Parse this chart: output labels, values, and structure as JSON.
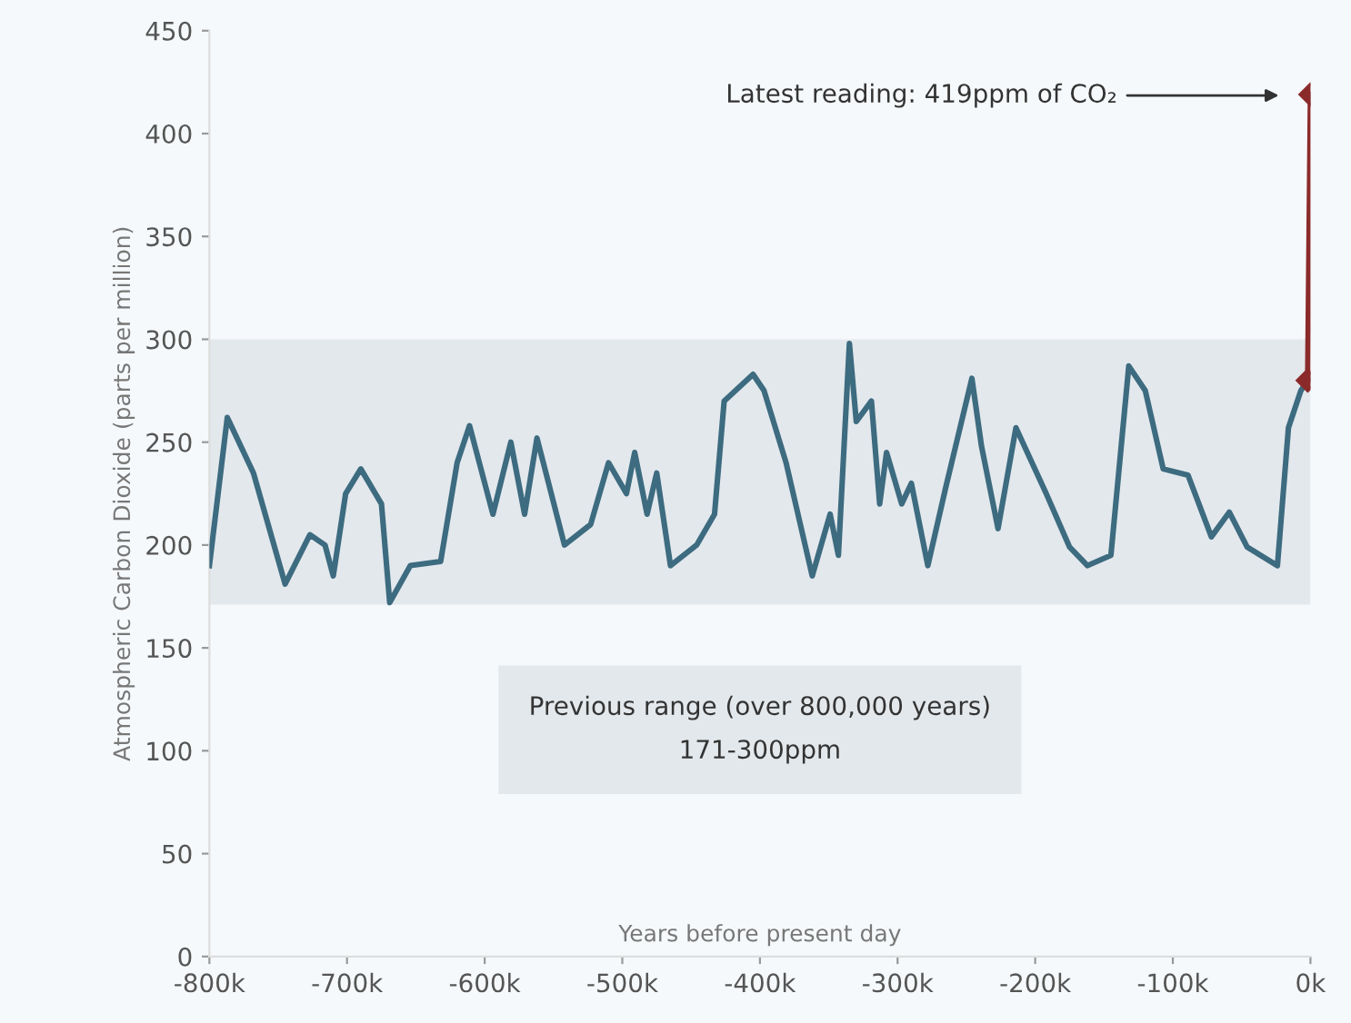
{
  "chart_data": {
    "type": "line",
    "xlabel": "Years before present day",
    "ylabel": "Atmospheric Carbon Dioxide (parts per million)",
    "xlim": [
      -800,
      0
    ],
    "xticks": [
      {
        "value": -800,
        "label": "-800k"
      },
      {
        "value": -700,
        "label": "-700k"
      },
      {
        "value": -600,
        "label": "-600k"
      },
      {
        "value": -500,
        "label": "-500k"
      },
      {
        "value": -400,
        "label": "-400k"
      },
      {
        "value": -300,
        "label": "-300k"
      },
      {
        "value": -200,
        "label": "-200k"
      },
      {
        "value": -100,
        "label": "-100k"
      },
      {
        "value": 0,
        "label": "0k"
      }
    ],
    "ylim": [
      0,
      450
    ],
    "yticks": [
      0,
      50,
      100,
      150,
      200,
      250,
      300,
      350,
      400,
      450
    ],
    "grid": false,
    "line_style": "solid",
    "series": [
      {
        "color": "#3d6b80",
        "marker": "none",
        "x": [
          -800,
          -787,
          -768,
          -745,
          -727,
          -716,
          -710,
          -701,
          -690,
          -675,
          -669,
          -654,
          -632,
          -620,
          -611,
          -594,
          -581,
          -571,
          -562,
          -542,
          -523,
          -510,
          -497,
          -491,
          -482,
          -475,
          -465,
          -446,
          -433,
          -426,
          -405,
          -397,
          -381,
          -362,
          -349,
          -343,
          -335,
          -330,
          -319,
          -313,
          -308,
          -297,
          -290,
          -278,
          -265,
          -246,
          -239,
          -227,
          -214,
          -192,
          -175,
          -162,
          -145,
          -132,
          -120,
          -107,
          -89,
          -72,
          -59,
          -46,
          -24,
          -16,
          -7,
          -2
        ],
        "values": [
          190,
          262,
          235,
          181,
          205,
          200,
          185,
          225,
          237,
          220,
          172,
          190,
          192,
          240,
          258,
          215,
          250,
          215,
          252,
          200,
          210,
          240,
          225,
          245,
          215,
          235,
          190,
          200,
          215,
          270,
          283,
          275,
          240,
          185,
          215,
          195,
          298,
          260,
          270,
          220,
          245,
          220,
          230,
          190,
          228,
          281,
          248,
          208,
          257,
          225,
          199,
          190,
          195,
          287,
          275,
          237,
          234,
          204,
          216,
          199,
          190,
          257,
          275,
          280
        ]
      },
      {
        "color": "#8b2a2a",
        "marker": "diamond",
        "x": [
          -2,
          0
        ],
        "values": [
          280,
          419
        ]
      }
    ],
    "bands": [
      {
        "axis": "y",
        "from": 171,
        "to": 300,
        "color": "#e3e8ec"
      }
    ],
    "annotations": [
      "Latest reading: 419ppm of CO₂",
      "Previous range (over 800,000 years)\n171-300ppm"
    ]
  }
}
